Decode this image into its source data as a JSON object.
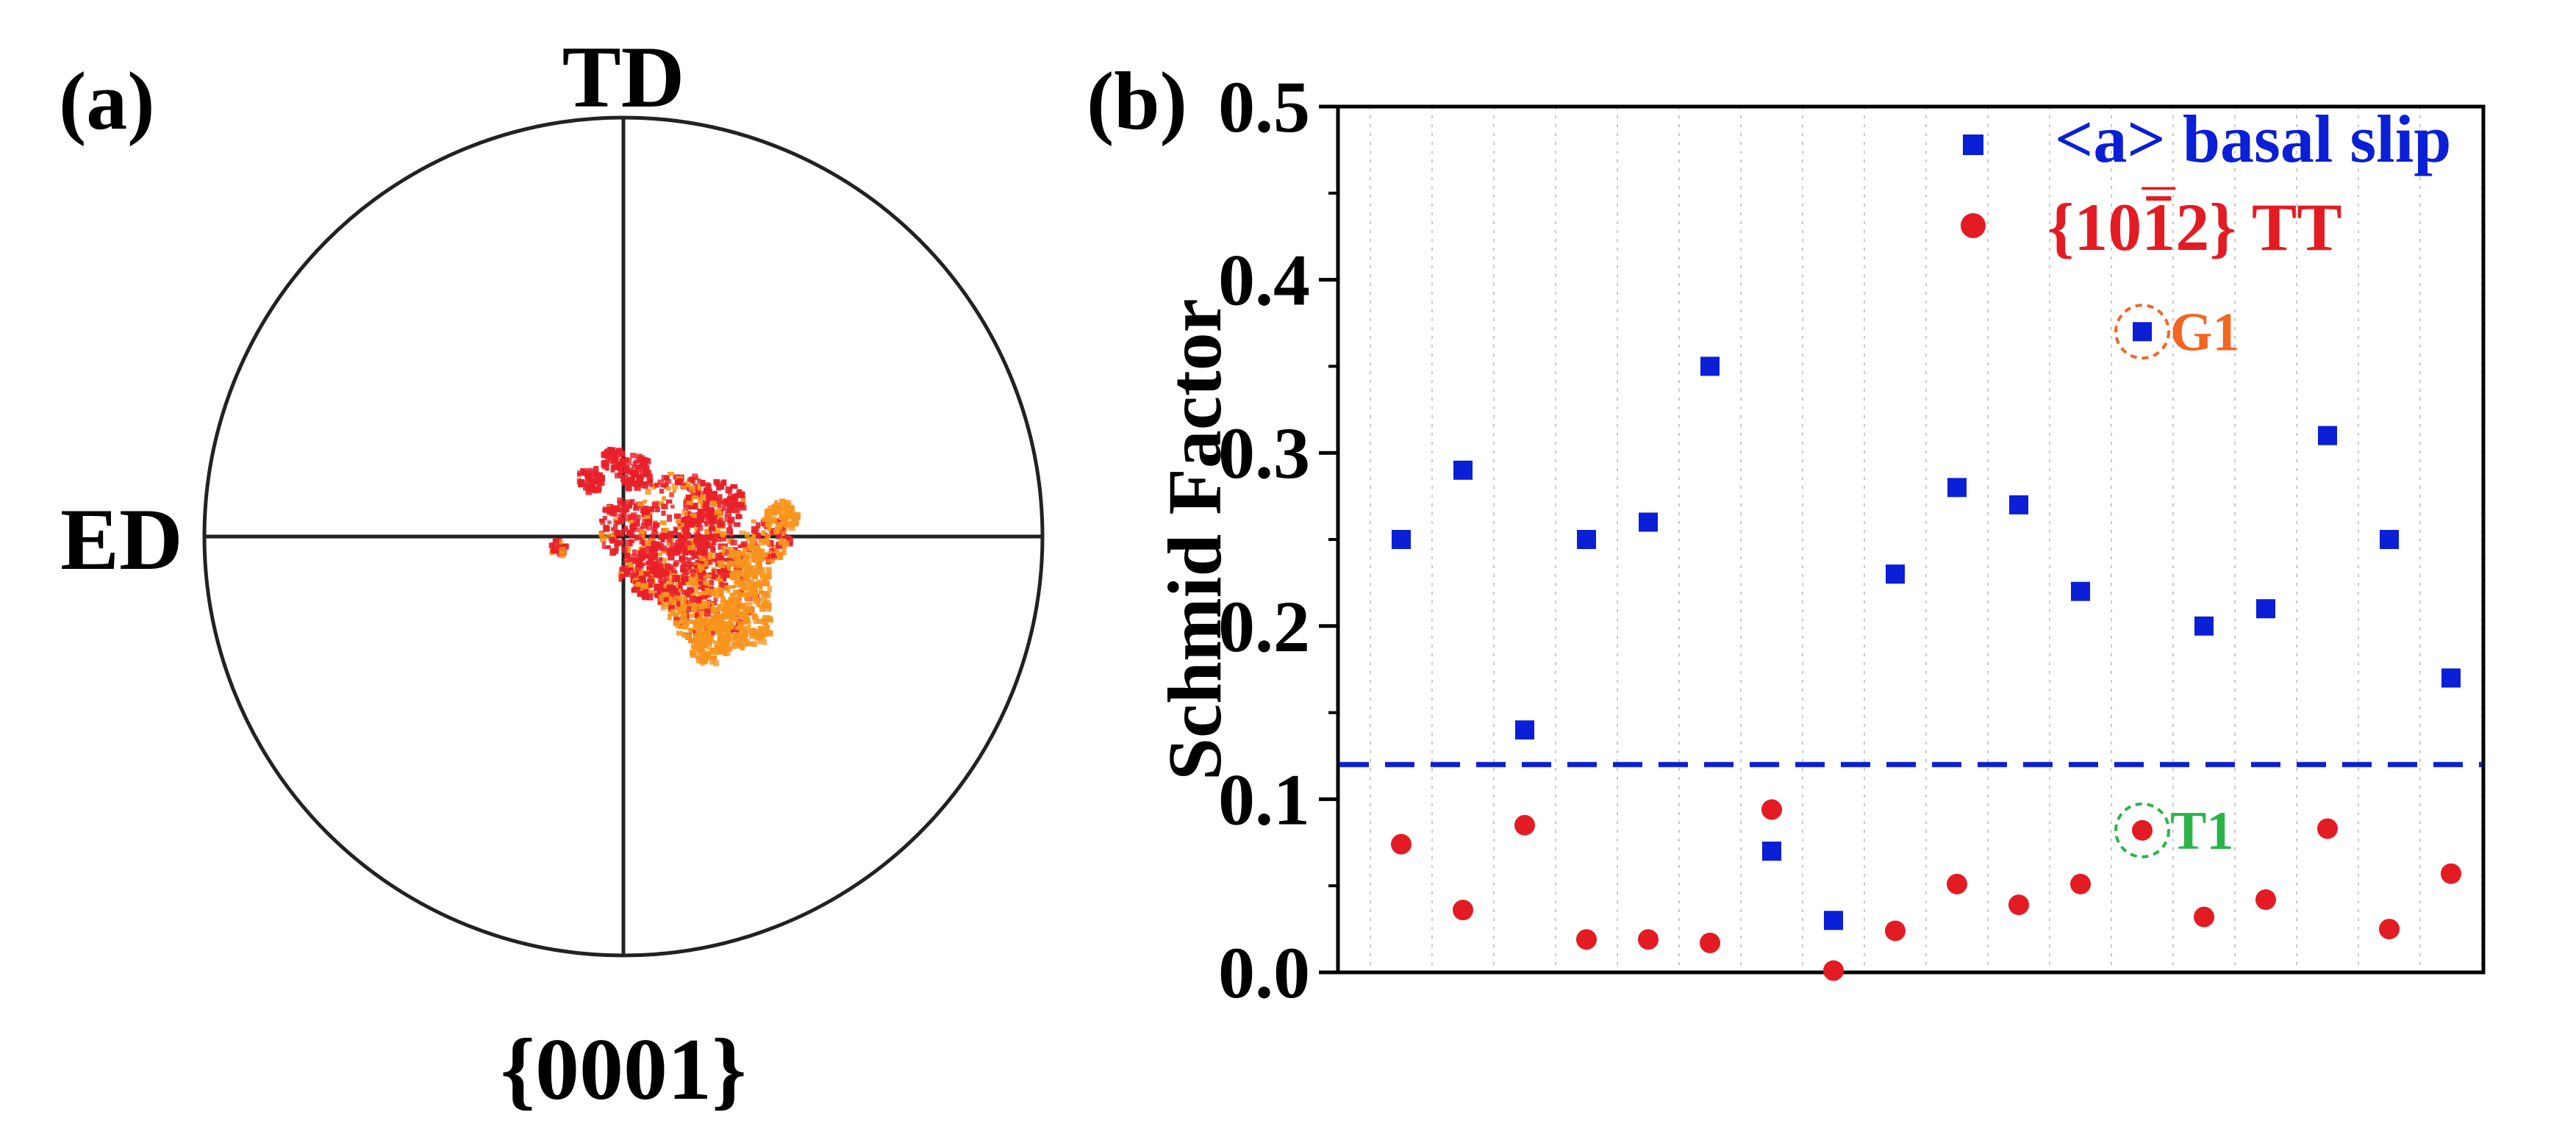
{
  "panel_a": {
    "label": "(a)",
    "top_axis_label": "TD",
    "left_axis_label": "ED",
    "bottom_label": "{0001}",
    "scatter_color_dark": "#e8202a",
    "scatter_color_light": "#f7941d"
  },
  "panel_b": {
    "label": "(b)"
  },
  "chart_data": {
    "type": "scatter",
    "title": "",
    "xlabel": "",
    "ylabel": "Schmid  Factor",
    "ylim": [
      0,
      0.5
    ],
    "yticks": [
      "0.0",
      "0.1",
      "0.2",
      "0.3",
      "0.4",
      "0.5"
    ],
    "grid": "vertical dotted",
    "x": [
      1,
      2,
      3,
      4,
      5,
      6,
      7,
      8,
      9,
      10,
      11,
      12,
      13,
      14,
      15,
      16,
      17,
      18
    ],
    "series": [
      {
        "name": "<a> basal slip",
        "marker": "square",
        "color": "#0b1fd6",
        "values": [
          0.25,
          0.29,
          0.14,
          0.25,
          0.26,
          0.35,
          0.07,
          0.03,
          0.23,
          0.28,
          0.27,
          0.22,
          0.37,
          0.2,
          0.21,
          0.31,
          0.25,
          0.17
        ]
      },
      {
        "name_prefix": "{10",
        "name_overbar": "1",
        "name_suffix": "2} TT",
        "marker": "circle",
        "color": "#e31b23",
        "values": [
          0.074,
          0.036,
          0.085,
          0.019,
          0.019,
          0.017,
          0.094,
          0.001,
          0.024,
          0.051,
          0.039,
          0.051,
          0.082,
          0.032,
          0.042,
          0.083,
          0.025,
          0.057
        ]
      }
    ],
    "threshold": {
      "value": 0.12,
      "color": "#0b1fd6",
      "style": "dashed"
    },
    "annotations": [
      {
        "text": "G1",
        "series": 0,
        "index": 12,
        "color": "#f26522"
      },
      {
        "text": "T1",
        "series": 1,
        "index": 12,
        "color": "#2bb34a"
      }
    ],
    "legend_position": "top-right"
  }
}
